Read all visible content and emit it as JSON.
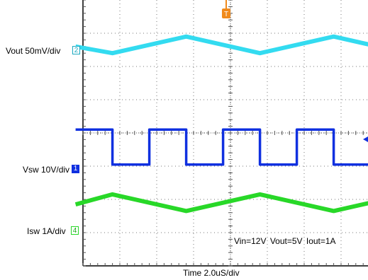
{
  "chart_data": {
    "type": "line",
    "title": "",
    "xlabel": "Time 2.0uS/div",
    "annotation": "Vin=12V   Vout=5V   Iout=1A",
    "trigger_marker": "T",
    "grid": true,
    "divisions": {
      "x": 10,
      "y": 8
    },
    "series": [
      {
        "name": "Vout 50mV/div",
        "channel": "2",
        "color": "#33dbf0",
        "marker_style": "outline",
        "waveform": "triangle",
        "x_div": [
          -0.2,
          0.8,
          2.8,
          4.8,
          6.8,
          8.8,
          10.2
        ],
        "y_div": [
          6.6,
          6.4,
          6.9,
          6.4,
          6.9,
          6.4,
          6.6
        ]
      },
      {
        "name": "Vsw 10V/div",
        "channel": "1",
        "color": "#1030e0",
        "marker_style": "solid",
        "waveform": "square",
        "x_div": [
          -0.2,
          0.8,
          0.8,
          1.8,
          1.8,
          2.8,
          2.8,
          3.8,
          3.8,
          4.8,
          4.8,
          5.8,
          5.8,
          6.8,
          6.8,
          7.8,
          7.8,
          8.8,
          8.8,
          10.2
        ],
        "y_div": [
          4.1,
          4.1,
          3.05,
          3.05,
          4.1,
          4.1,
          3.05,
          3.05,
          4.1,
          4.1,
          3.05,
          3.05,
          4.1,
          4.1,
          3.05,
          3.05,
          4.1,
          4.1,
          3.05,
          3.05
        ]
      },
      {
        "name": "Isw 1A/div",
        "channel": "4",
        "color": "#28d828",
        "marker_style": "outline",
        "waveform": "triangle",
        "x_div": [
          -0.2,
          0.8,
          2.8,
          4.8,
          6.8,
          8.8,
          10.2
        ],
        "y_div": [
          1.85,
          2.15,
          1.65,
          2.15,
          1.65,
          2.15,
          1.85
        ]
      }
    ]
  }
}
